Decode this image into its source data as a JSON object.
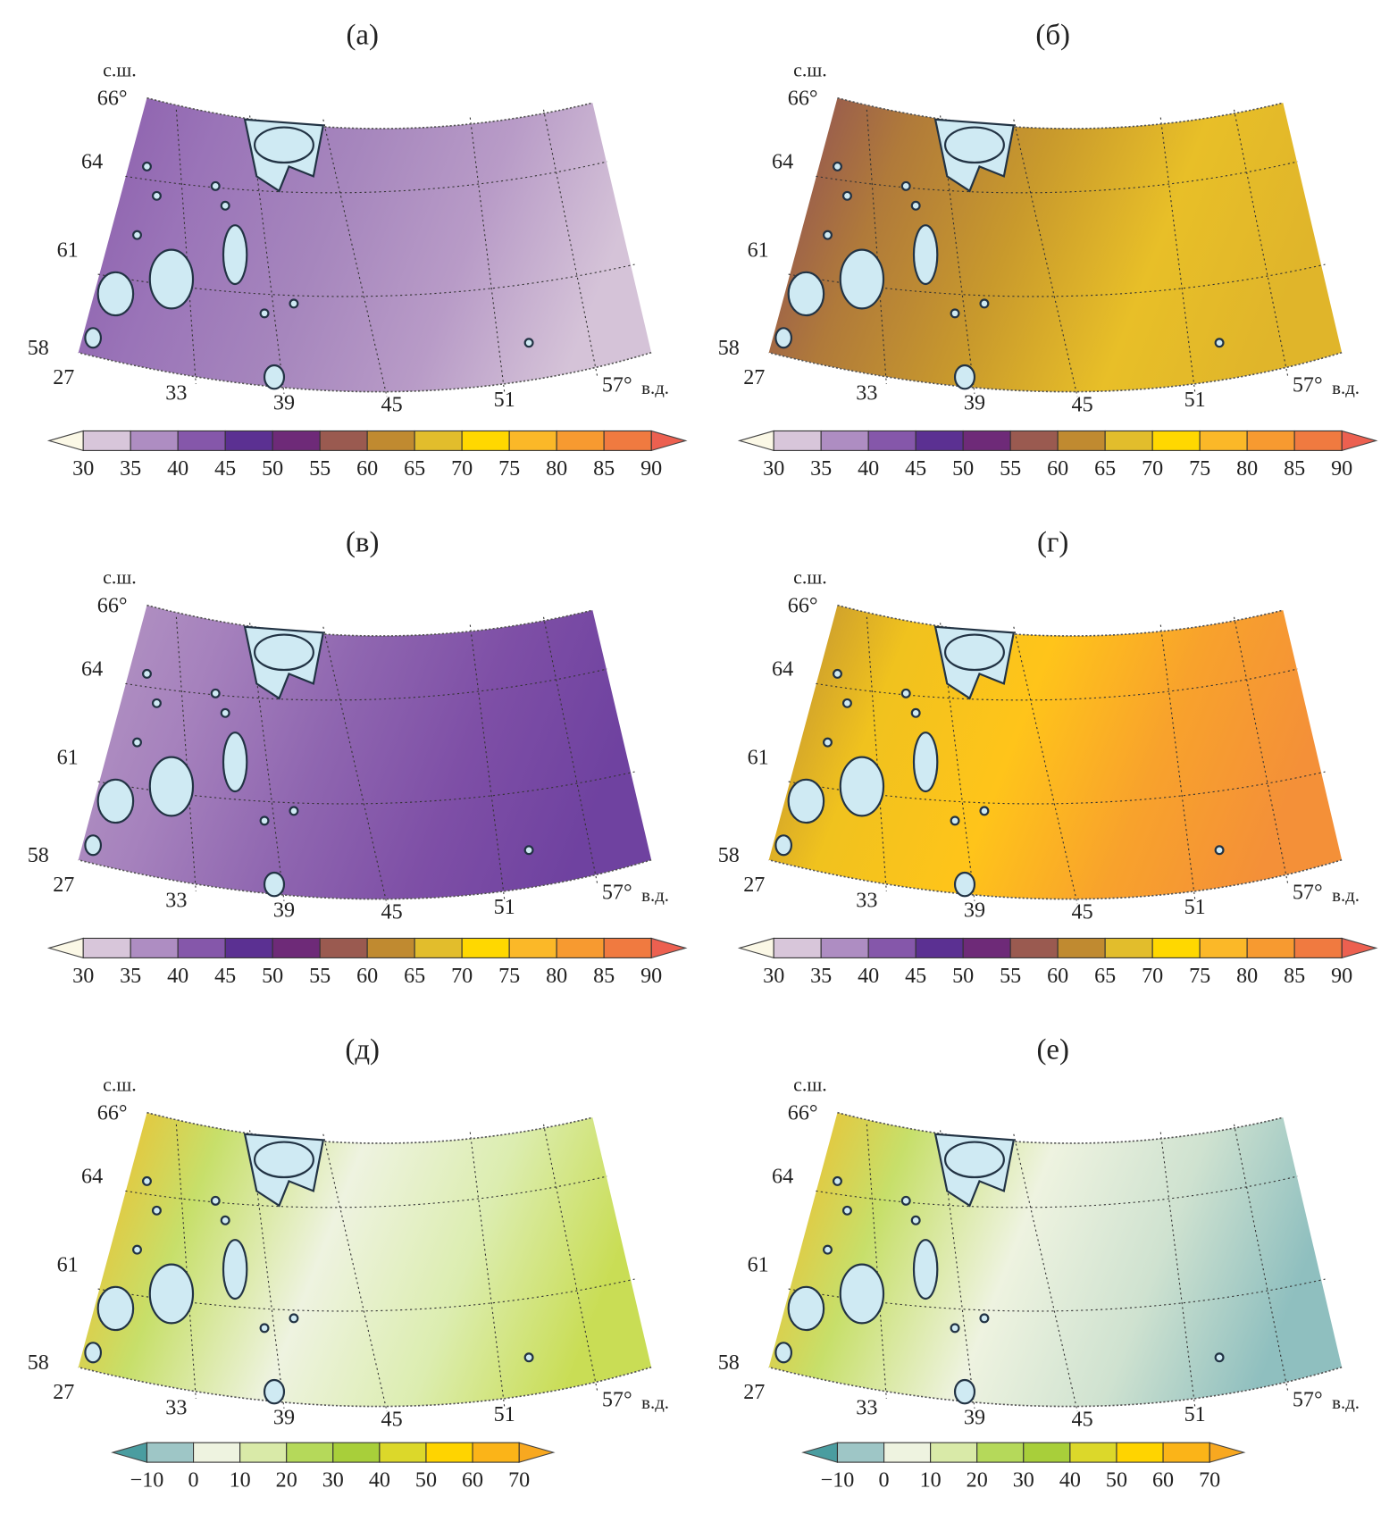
{
  "figure": {
    "colorbar_main": {
      "labels": [
        "30",
        "35",
        "40",
        "45",
        "50",
        "55",
        "60",
        "65",
        "70",
        "75",
        "80",
        "85",
        "90"
      ],
      "colors": [
        "#d8c6da",
        "#ae8dc2",
        "#8557aa",
        "#5b3092",
        "#6e2a78",
        "#9a5a50",
        "#c08a30",
        "#e2bd2c",
        "#ffd800",
        "#fbb828",
        "#f79a30",
        "#f07a40"
      ],
      "under_color": "#fbf8e6",
      "over_color": "#ec6050"
    },
    "colorbar_diff": {
      "labels": [
        "−10",
        "0",
        "10",
        "20",
        "30",
        "40",
        "50",
        "60",
        "70"
      ],
      "colors": [
        "#9ec6c6",
        "#eef3e0",
        "#d9eaa8",
        "#b5d95a",
        "#a8cf3a",
        "#dcd82a",
        "#ffd400",
        "#fbb418"
      ],
      "under_color": "#4a9da0",
      "over_color": "#f8a820"
    },
    "axis_labels": {
      "north": "с.ш.",
      "lat": [
        "66°",
        "64",
        "61",
        "58"
      ],
      "lon": [
        "27",
        "33",
        "39",
        "45",
        "51",
        "57°"
      ],
      "east": "в.д."
    },
    "lake_color": "#cfeaf3",
    "panels": [
      {
        "title": "(а)",
        "colorbar": "main",
        "fill_stops": [
          "#8a5cab",
          "#9a74b8",
          "#a686bd",
          "#b89bc7",
          "#d5c3d8"
        ]
      },
      {
        "title": "(б)",
        "colorbar": "main",
        "fill_stops": [
          "#8a4a5a",
          "#b07a3a",
          "#c99a2c",
          "#e8bf28",
          "#e0b52a"
        ]
      },
      {
        "title": "(в)",
        "colorbar": "main",
        "fill_stops": [
          "#b597c4",
          "#a682bd",
          "#8f66b0",
          "#7e4fa6",
          "#6f42a0"
        ]
      },
      {
        "title": "(г)",
        "colorbar": "main",
        "fill_stops": [
          "#b88a36",
          "#f0c21e",
          "#ffc41a",
          "#f8a22c",
          "#f49038"
        ]
      },
      {
        "title": "(д)",
        "colorbar": "diff",
        "fill_stops": [
          "#f8b820",
          "#c7df6a",
          "#eef3e0",
          "#dcedb0",
          "#c9dd55"
        ]
      },
      {
        "title": "(е)",
        "colorbar": "diff",
        "fill_stops": [
          "#f8b820",
          "#c7df6a",
          "#eef3e0",
          "#cfe2d0",
          "#8fbfbf"
        ]
      }
    ]
  }
}
